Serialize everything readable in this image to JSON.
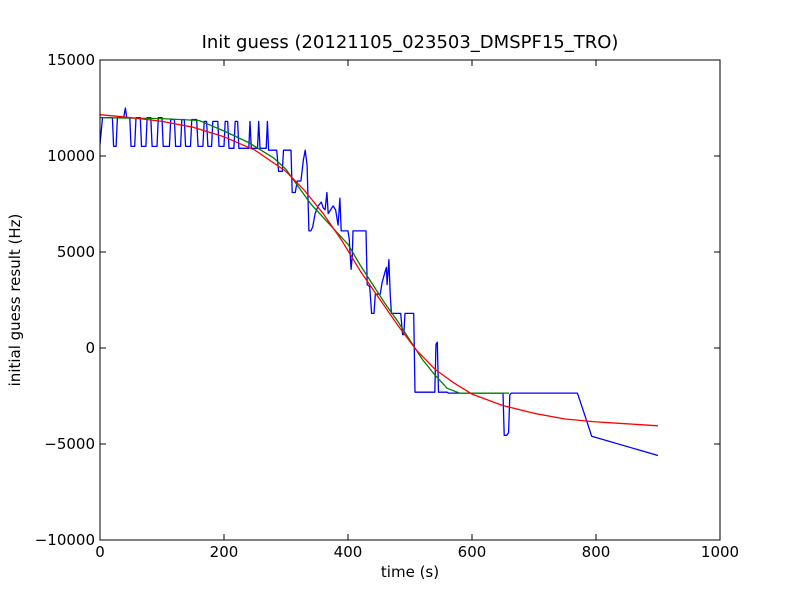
{
  "chart_data": {
    "type": "line",
    "title": "Init guess (20121105_023503_DMSPF15_TRO)",
    "xlabel": "time (s)",
    "ylabel": "initial guess result (Hz)",
    "xlim": [
      0,
      1000
    ],
    "ylim": [
      -10000,
      15000
    ],
    "xticks": [
      0,
      200,
      400,
      600,
      800,
      1000
    ],
    "yticks": [
      -10000,
      -5000,
      0,
      5000,
      10000,
      15000
    ],
    "grid": false,
    "legend": "none",
    "series": [
      {
        "color": "#0000ff",
        "points": [
          [
            0,
            10600
          ],
          [
            4,
            12000
          ],
          [
            20,
            12000
          ],
          [
            22,
            10500
          ],
          [
            26,
            10500
          ],
          [
            28,
            12000
          ],
          [
            38,
            12000
          ],
          [
            41,
            12500
          ],
          [
            43,
            12000
          ],
          [
            48,
            12000
          ],
          [
            50,
            10500
          ],
          [
            56,
            10500
          ],
          [
            58,
            12000
          ],
          [
            65,
            12000
          ],
          [
            67,
            10500
          ],
          [
            74,
            10500
          ],
          [
            76,
            12000
          ],
          [
            82,
            12000
          ],
          [
            84,
            10500
          ],
          [
            92,
            10500
          ],
          [
            94,
            12000
          ],
          [
            100,
            12000
          ],
          [
            102,
            10500
          ],
          [
            112,
            10500
          ],
          [
            114,
            11900
          ],
          [
            120,
            11900
          ],
          [
            122,
            10500
          ],
          [
            130,
            10500
          ],
          [
            132,
            11900
          ],
          [
            136,
            11900
          ],
          [
            138,
            10500
          ],
          [
            146,
            10500
          ],
          [
            148,
            11900
          ],
          [
            156,
            11900
          ],
          [
            158,
            10500
          ],
          [
            166,
            10500
          ],
          [
            168,
            11800
          ],
          [
            172,
            11800
          ],
          [
            174,
            10500
          ],
          [
            180,
            10500
          ],
          [
            182,
            11800
          ],
          [
            190,
            11800
          ],
          [
            192,
            10500
          ],
          [
            200,
            10500
          ],
          [
            202,
            11800
          ],
          [
            206,
            11800
          ],
          [
            208,
            10400
          ],
          [
            216,
            10400
          ],
          [
            218,
            11800
          ],
          [
            222,
            11800
          ],
          [
            224,
            10400
          ],
          [
            240,
            10400
          ],
          [
            242,
            11800
          ],
          [
            244,
            10400
          ],
          [
            254,
            10400
          ],
          [
            256,
            11800
          ],
          [
            258,
            10400
          ],
          [
            268,
            10400
          ],
          [
            270,
            11800
          ],
          [
            272,
            10300
          ],
          [
            285,
            10300
          ],
          [
            288,
            9200
          ],
          [
            294,
            9200
          ],
          [
            296,
            10300
          ],
          [
            308,
            10300
          ],
          [
            310,
            8100
          ],
          [
            315,
            8100
          ],
          [
            318,
            8700
          ],
          [
            324,
            8700
          ],
          [
            328,
            9800
          ],
          [
            331,
            10300
          ],
          [
            334,
            9500
          ],
          [
            337,
            6100
          ],
          [
            340,
            6100
          ],
          [
            343,
            6300
          ],
          [
            347,
            7000
          ],
          [
            352,
            7400
          ],
          [
            357,
            7600
          ],
          [
            360,
            7300
          ],
          [
            363,
            7200
          ],
          [
            366,
            8100
          ],
          [
            368,
            7000
          ],
          [
            372,
            7200
          ],
          [
            376,
            7400
          ],
          [
            380,
            7200
          ],
          [
            384,
            6400
          ],
          [
            387,
            7800
          ],
          [
            389,
            6100
          ],
          [
            400,
            6100
          ],
          [
            402,
            5700
          ],
          [
            405,
            4100
          ],
          [
            407,
            4800
          ],
          [
            408,
            6100
          ],
          [
            429,
            6100
          ],
          [
            431,
            3300
          ],
          [
            435,
            3200
          ],
          [
            438,
            1800
          ],
          [
            442,
            1800
          ],
          [
            444,
            2800
          ],
          [
            452,
            2800
          ],
          [
            455,
            3400
          ],
          [
            460,
            4000
          ],
          [
            462,
            4200
          ],
          [
            463,
            3300
          ],
          [
            466,
            4600
          ],
          [
            468,
            2800
          ],
          [
            470,
            1800
          ],
          [
            485,
            1800
          ],
          [
            488,
            700
          ],
          [
            490,
            700
          ],
          [
            492,
            1800
          ],
          [
            506,
            1800
          ],
          [
            508,
            -2300
          ],
          [
            540,
            -2300
          ],
          [
            542,
            200
          ],
          [
            544,
            300
          ],
          [
            546,
            -2300
          ],
          [
            560,
            -2300
          ],
          [
            562,
            -2350
          ],
          [
            650,
            -2350
          ],
          [
            652,
            -4550
          ],
          [
            656,
            -4550
          ],
          [
            659,
            -4400
          ],
          [
            661,
            -2450
          ],
          [
            663,
            -2350
          ],
          [
            770,
            -2350
          ],
          [
            782,
            -3500
          ],
          [
            793,
            -4600
          ],
          [
            900,
            -5600
          ]
        ]
      },
      {
        "color": "#008000",
        "points": [
          [
            0,
            12000
          ],
          [
            100,
            11950
          ],
          [
            160,
            11850
          ],
          [
            200,
            11300
          ],
          [
            240,
            10700
          ],
          [
            280,
            9900
          ],
          [
            300,
            9300
          ],
          [
            320,
            8400
          ],
          [
            340,
            7500
          ],
          [
            360,
            6800
          ],
          [
            380,
            6100
          ],
          [
            400,
            5400
          ],
          [
            420,
            4300
          ],
          [
            440,
            3300
          ],
          [
            460,
            2300
          ],
          [
            480,
            1400
          ],
          [
            500,
            400
          ],
          [
            520,
            -600
          ],
          [
            540,
            -1400
          ],
          [
            560,
            -2100
          ],
          [
            580,
            -2350
          ],
          [
            620,
            -2350
          ],
          [
            660,
            -2350
          ]
        ]
      },
      {
        "color": "#ff0000",
        "points": [
          [
            0,
            12150
          ],
          [
            50,
            12000
          ],
          [
            100,
            11800
          ],
          [
            150,
            11500
          ],
          [
            200,
            11000
          ],
          [
            250,
            10300
          ],
          [
            300,
            9200
          ],
          [
            330,
            8200
          ],
          [
            360,
            7000
          ],
          [
            390,
            5600
          ],
          [
            420,
            4000
          ],
          [
            450,
            2600
          ],
          [
            480,
            1200
          ],
          [
            510,
            -100
          ],
          [
            540,
            -1100
          ],
          [
            570,
            -1800
          ],
          [
            600,
            -2400
          ],
          [
            650,
            -3000
          ],
          [
            700,
            -3400
          ],
          [
            750,
            -3700
          ],
          [
            800,
            -3850
          ],
          [
            850,
            -3950
          ],
          [
            900,
            -4050
          ]
        ]
      }
    ]
  }
}
